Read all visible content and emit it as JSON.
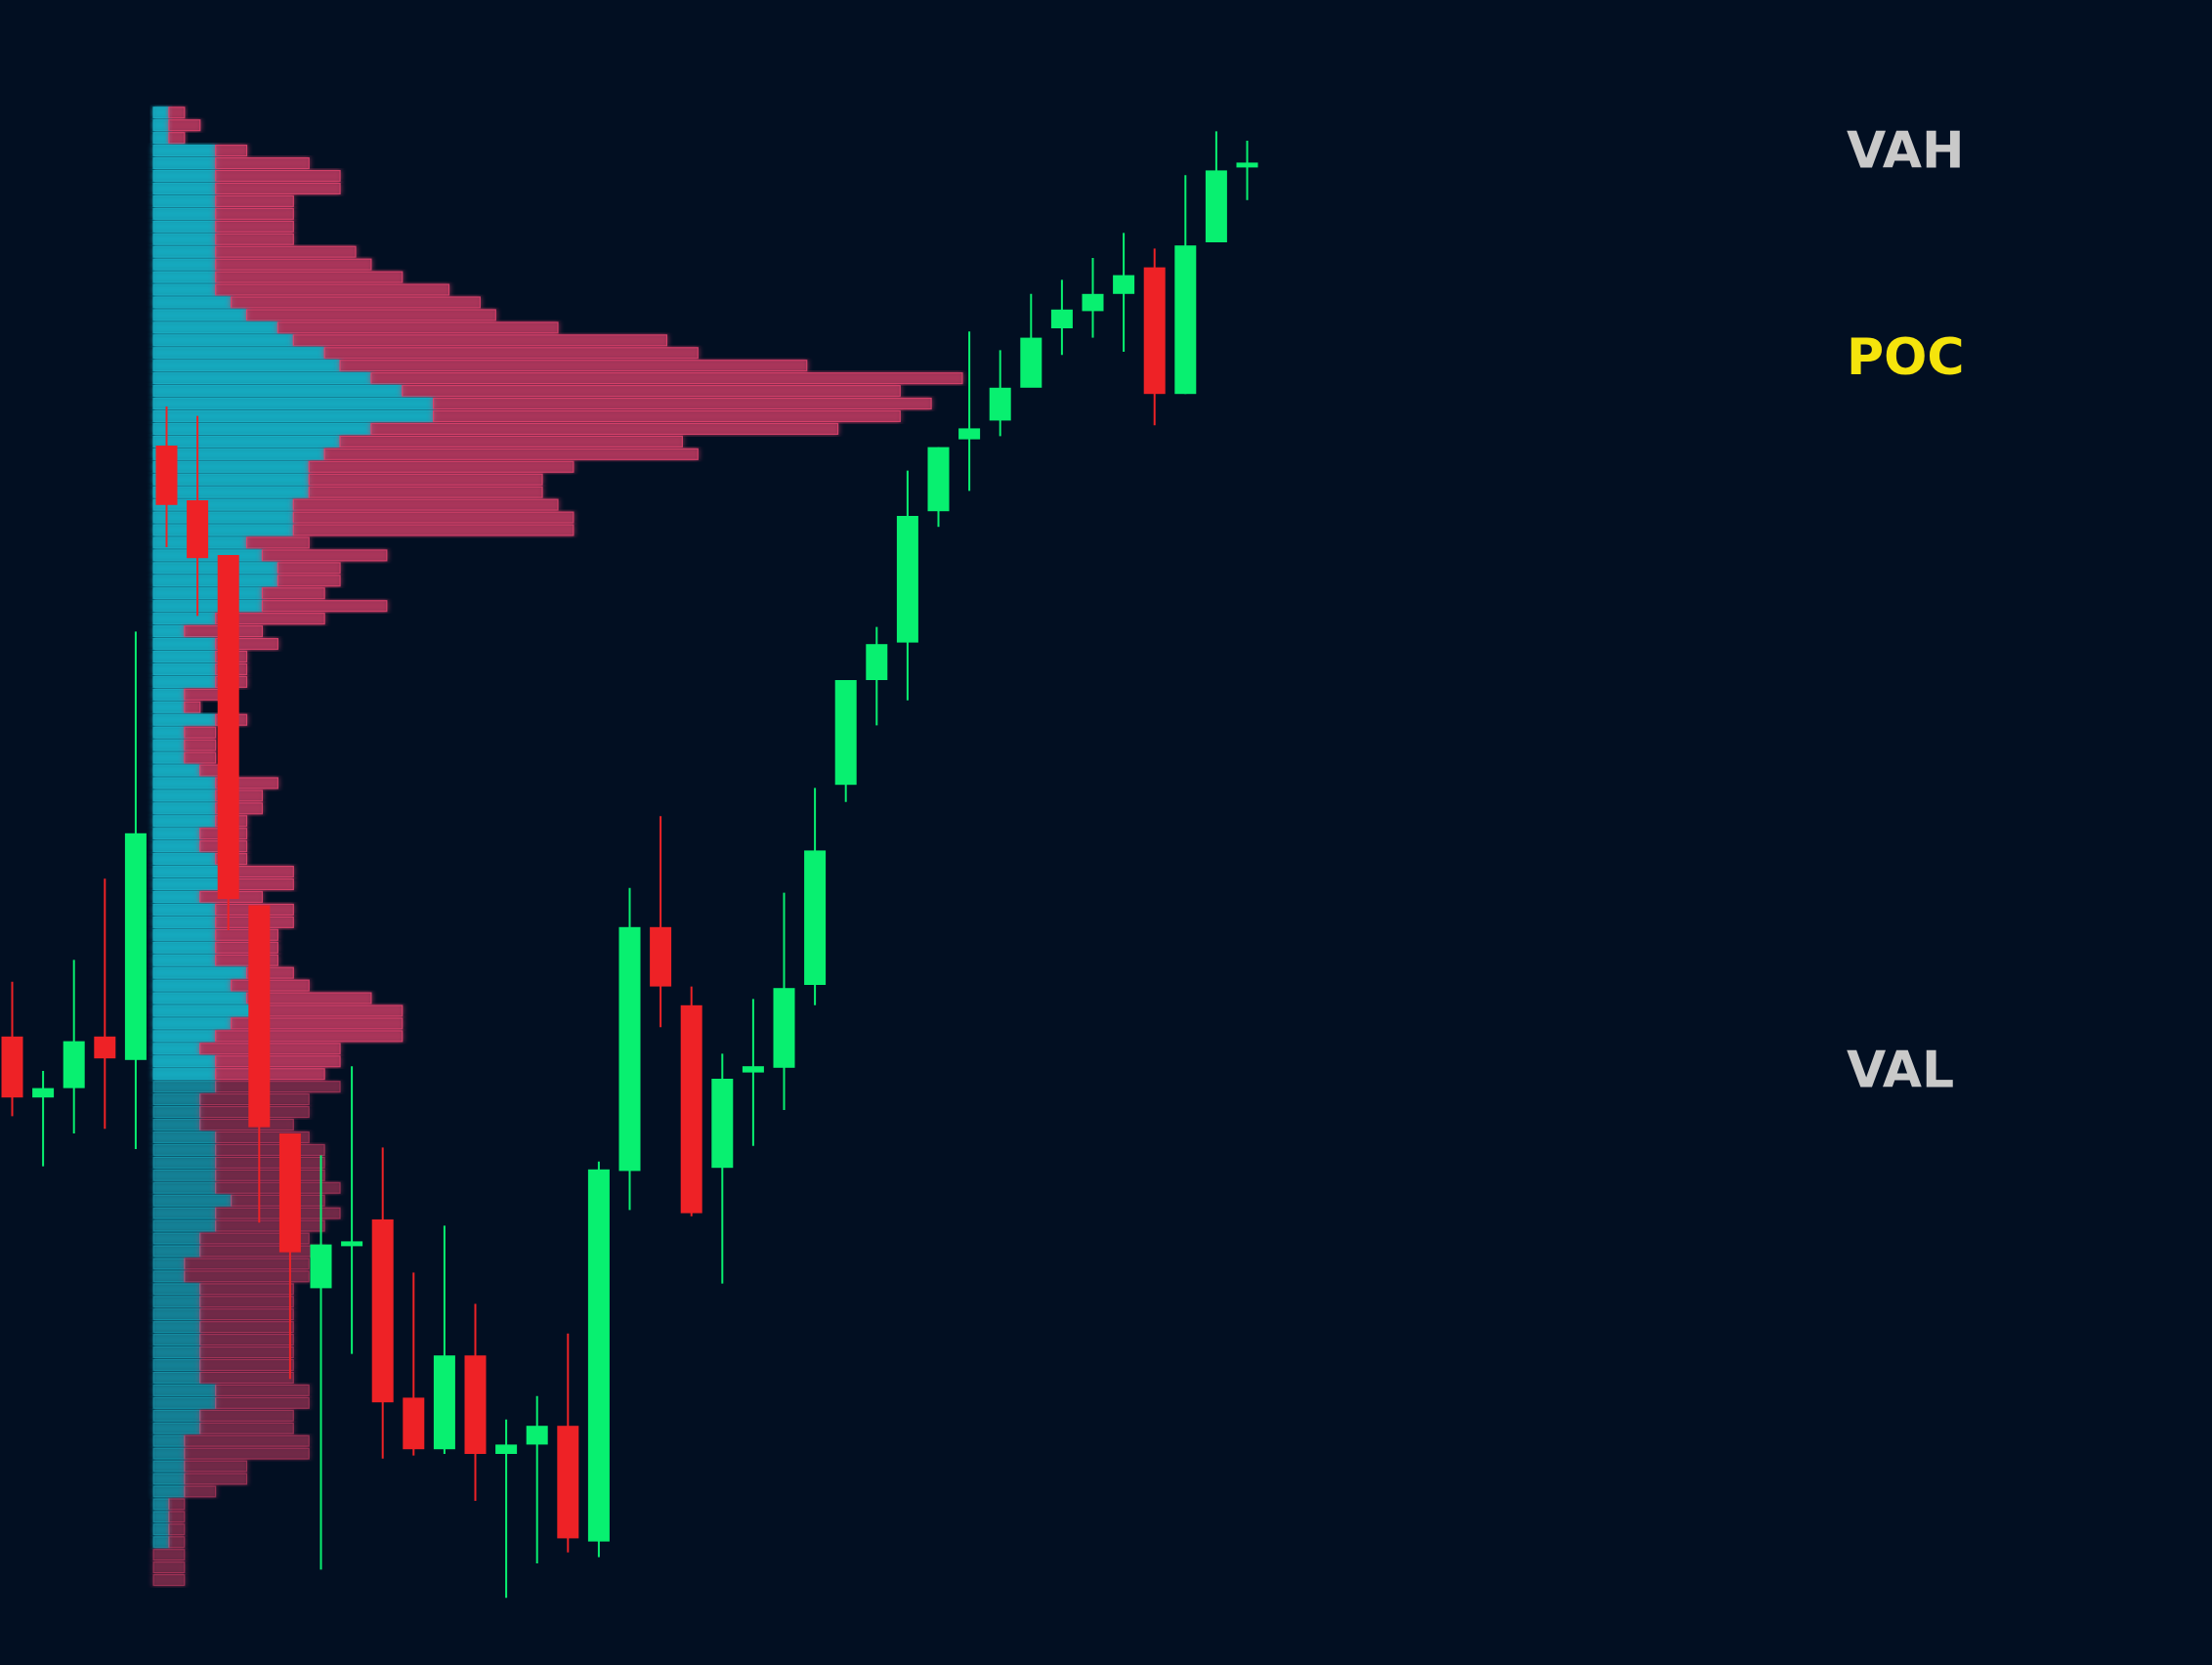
{
  "colors": {
    "background": "#020f22",
    "bull": "#08f070",
    "bear": "#ee2226",
    "profile_buy": "#19aec4",
    "profile_sell": "#d8406a",
    "level_line": "#dcdcdc",
    "poc_line": "#f5e40c",
    "level_label": "#c9c9c9",
    "poc_label": "#f5e40c"
  },
  "chart_data": {
    "type": "candlestick",
    "title": "",
    "xlabel": "",
    "ylabel": "",
    "grid": false,
    "ylim": [
      0,
      100
    ],
    "levels": [
      {
        "key": "vah",
        "label": "VAH",
        "value": 94.4
      },
      {
        "key": "poc",
        "label": "POC",
        "value": 81.2
      },
      {
        "key": "val",
        "label": "VAL",
        "value": 35.6
      }
    ],
    "candles": [
      {
        "i": 0,
        "open": 37.7,
        "high": 41.2,
        "low": 32.6,
        "close": 33.8
      },
      {
        "i": 1,
        "open": 33.8,
        "high": 35.5,
        "low": 29.4,
        "close": 34.4
      },
      {
        "i": 2,
        "open": 34.4,
        "high": 42.6,
        "low": 31.5,
        "close": 37.4
      },
      {
        "i": 3,
        "open": 37.7,
        "high": 47.8,
        "low": 31.8,
        "close": 36.3
      },
      {
        "i": 4,
        "open": 36.2,
        "high": 63.6,
        "low": 30.5,
        "close": 50.7
      },
      {
        "i": 5,
        "open": 75.5,
        "high": 78.0,
        "low": 69.0,
        "close": 71.7
      },
      {
        "i": 6,
        "open": 72.0,
        "high": 77.4,
        "low": 64.6,
        "close": 68.3
      },
      {
        "i": 7,
        "open": 68.5,
        "high": 68.5,
        "low": 44.5,
        "close": 46.5
      },
      {
        "i": 8,
        "open": 46.1,
        "high": 46.1,
        "low": 25.8,
        "close": 31.9
      },
      {
        "i": 9,
        "open": 31.5,
        "high": 31.5,
        "low": 15.8,
        "close": 23.9
      },
      {
        "i": 10,
        "open": 21.6,
        "high": 30.1,
        "low": 3.6,
        "close": 24.4
      },
      {
        "i": 11,
        "open": 24.5,
        "high": 35.8,
        "low": 17.4,
        "close": 24.6
      },
      {
        "i": 12,
        "open": 26.0,
        "high": 30.6,
        "low": 10.7,
        "close": 14.3
      },
      {
        "i": 13,
        "open": 14.6,
        "high": 22.6,
        "low": 10.9,
        "close": 11.3
      },
      {
        "i": 14,
        "open": 11.3,
        "high": 25.6,
        "low": 11.0,
        "close": 17.3
      },
      {
        "i": 15,
        "open": 17.3,
        "high": 20.6,
        "low": 8.0,
        "close": 11.0
      },
      {
        "i": 16,
        "open": 11.0,
        "high": 13.2,
        "low": 1.8,
        "close": 11.6
      },
      {
        "i": 17,
        "open": 11.6,
        "high": 14.7,
        "low": 4.0,
        "close": 12.8
      },
      {
        "i": 18,
        "open": 12.8,
        "high": 18.7,
        "low": 4.7,
        "close": 5.6
      },
      {
        "i": 19,
        "open": 5.4,
        "high": 29.7,
        "low": 4.4,
        "close": 29.2
      },
      {
        "i": 20,
        "open": 29.1,
        "high": 47.2,
        "low": 26.6,
        "close": 44.7
      },
      {
        "i": 21,
        "open": 44.7,
        "high": 51.8,
        "low": 38.3,
        "close": 40.9
      },
      {
        "i": 22,
        "open": 39.7,
        "high": 40.9,
        "low": 26.2,
        "close": 26.4
      },
      {
        "i": 23,
        "open": 29.3,
        "high": 36.6,
        "low": 21.9,
        "close": 35.0
      },
      {
        "i": 24,
        "open": 35.4,
        "high": 40.1,
        "low": 30.7,
        "close": 35.8
      },
      {
        "i": 25,
        "open": 35.7,
        "high": 46.9,
        "low": 33.0,
        "close": 40.8
      },
      {
        "i": 26,
        "open": 41.0,
        "high": 53.6,
        "low": 39.7,
        "close": 49.6
      },
      {
        "i": 27,
        "open": 53.8,
        "high": 60.2,
        "low": 52.7,
        "close": 60.5
      },
      {
        "i": 28,
        "open": 60.5,
        "high": 63.9,
        "low": 57.6,
        "close": 62.8
      },
      {
        "i": 29,
        "open": 62.9,
        "high": 73.9,
        "low": 59.2,
        "close": 71.0
      },
      {
        "i": 30,
        "open": 71.3,
        "high": 75.4,
        "low": 70.3,
        "close": 75.4
      },
      {
        "i": 31,
        "open": 75.9,
        "high": 82.8,
        "low": 72.6,
        "close": 76.6
      },
      {
        "i": 32,
        "open": 77.1,
        "high": 81.6,
        "low": 76.1,
        "close": 79.2
      },
      {
        "i": 33,
        "open": 79.2,
        "high": 85.2,
        "low": 80.1,
        "close": 82.4
      },
      {
        "i": 34,
        "open": 83.0,
        "high": 86.1,
        "low": 81.3,
        "close": 84.2
      },
      {
        "i": 35,
        "open": 84.1,
        "high": 87.5,
        "low": 82.4,
        "close": 85.2
      },
      {
        "i": 36,
        "open": 85.2,
        "high": 89.1,
        "low": 81.5,
        "close": 86.4
      },
      {
        "i": 37,
        "open": 86.9,
        "high": 88.1,
        "low": 76.8,
        "close": 78.8
      },
      {
        "i": 38,
        "open": 78.8,
        "high": 92.8,
        "low": 78.8,
        "close": 88.3
      },
      {
        "i": 39,
        "open": 88.5,
        "high": 95.6,
        "low": 88.5,
        "close": 93.1
      },
      {
        "i": 40,
        "open": 93.3,
        "high": 95.0,
        "low": 91.2,
        "close": 93.6
      }
    ],
    "volume_profile": {
      "price_top": 97.2,
      "price_bottom": 0.1,
      "max_total": 206,
      "buy": [
        5,
        5,
        5,
        20,
        20,
        20,
        20,
        20,
        20,
        20,
        20,
        20,
        20,
        20,
        20,
        25,
        30,
        40,
        45,
        55,
        60,
        70,
        80,
        90,
        90,
        70,
        60,
        55,
        50,
        50,
        50,
        45,
        45,
        45,
        30,
        35,
        40,
        40,
        35,
        35,
        20,
        10,
        20,
        20,
        20,
        20,
        10,
        10,
        20,
        10,
        10,
        10,
        15,
        20,
        20,
        20,
        20,
        15,
        15,
        20,
        25,
        25,
        15,
        20,
        20,
        20,
        20,
        20,
        30,
        25,
        30,
        35,
        25,
        20,
        15,
        20,
        20,
        20,
        15,
        15,
        15,
        20,
        20,
        20,
        20,
        20,
        25,
        20,
        20,
        15,
        15,
        10,
        10,
        15,
        15,
        15,
        15,
        15,
        15,
        15,
        15,
        20,
        20,
        15,
        15,
        10,
        10,
        10,
        10,
        10,
        5,
        5,
        5,
        5,
        0,
        0,
        0,
        0,
        0,
        0
      ],
      "sell": [
        5,
        10,
        5,
        10,
        30,
        40,
        40,
        25,
        25,
        25,
        25,
        45,
        50,
        60,
        75,
        80,
        80,
        90,
        120,
        120,
        150,
        190,
        160,
        160,
        150,
        150,
        110,
        120,
        85,
        75,
        75,
        85,
        90,
        90,
        20,
        40,
        20,
        20,
        20,
        40,
        35,
        25,
        20,
        10,
        10,
        10,
        15,
        5,
        10,
        10,
        10,
        10,
        10,
        20,
        15,
        15,
        10,
        15,
        15,
        10,
        20,
        20,
        20,
        25,
        25,
        20,
        20,
        20,
        15,
        25,
        40,
        45,
        55,
        60,
        45,
        40,
        35,
        40,
        35,
        35,
        30,
        30,
        35,
        35,
        35,
        40,
        30,
        40,
        35,
        35,
        40,
        40,
        40,
        30,
        30,
        30,
        30,
        30,
        30,
        30,
        30,
        30,
        30,
        30,
        30,
        40,
        40,
        20,
        20,
        10,
        5,
        5,
        5,
        5,
        10,
        10,
        10,
        0,
        0,
        0
      ]
    }
  }
}
